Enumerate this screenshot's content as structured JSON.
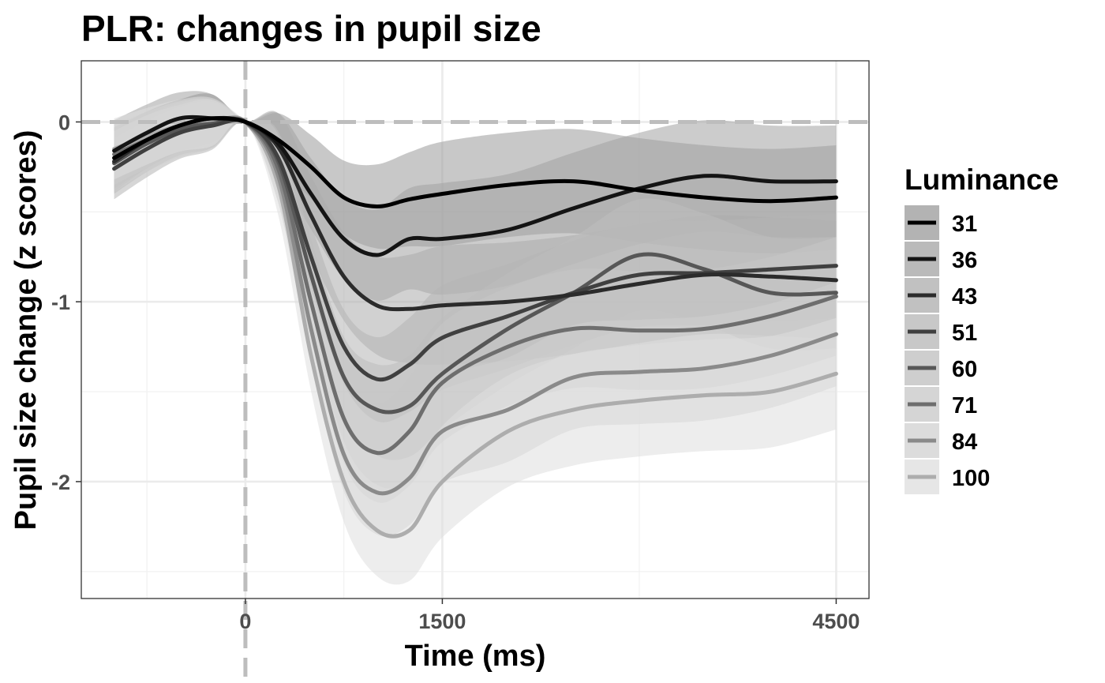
{
  "chart_data": {
    "type": "line",
    "title": "PLR: changes in pupil size",
    "xlabel": "Time (ms)",
    "ylabel": "Pupil size change (z scores)",
    "xlim": [
      -1250,
      4750
    ],
    "ylim": [
      -2.65,
      0.34
    ],
    "x_ticks": [
      0,
      1500,
      4500
    ],
    "x_tick_labels": [
      "0",
      "1500",
      "4500"
    ],
    "y_ticks": [
      0,
      -1,
      -2
    ],
    "y_tick_labels": [
      "0",
      "-1",
      "-2"
    ],
    "grid": true,
    "reference_lines": {
      "x": 0,
      "y": 0,
      "style": "dashed"
    },
    "legend": {
      "title": "Luminance",
      "position": "right"
    },
    "x": [
      -1000,
      -750,
      -500,
      -250,
      0,
      250,
      500,
      750,
      1000,
      1250,
      1500,
      2000,
      2500,
      3000,
      3500,
      4000,
      4500
    ],
    "series": [
      {
        "name": "31",
        "color": "#000000",
        "ribbon": "#9a9a9a",
        "values": [
          -0.2,
          -0.1,
          -0.02,
          0.02,
          0,
          -0.1,
          -0.25,
          -0.42,
          -0.47,
          -0.43,
          -0.4,
          -0.35,
          -0.33,
          -0.38,
          -0.42,
          -0.44,
          -0.42
        ]
      },
      {
        "name": "36",
        "color": "#141414",
        "ribbon": "#a3a3a3",
        "values": [
          -0.16,
          -0.06,
          0.02,
          0.02,
          0,
          -0.12,
          -0.4,
          -0.65,
          -0.74,
          -0.65,
          -0.65,
          -0.6,
          -0.48,
          -0.37,
          -0.3,
          -0.33,
          -0.33
        ]
      },
      {
        "name": "43",
        "color": "#2b2b2b",
        "ribbon": "#acacac",
        "values": [
          -0.22,
          -0.1,
          -0.02,
          0.02,
          0,
          -0.14,
          -0.52,
          -0.86,
          -1.02,
          -1.04,
          -1.02,
          -1.0,
          -0.96,
          -0.9,
          -0.85,
          -0.86,
          -0.88
        ]
      },
      {
        "name": "51",
        "color": "#404040",
        "ribbon": "#b5b5b5",
        "values": [
          -0.26,
          -0.15,
          -0.06,
          -0.02,
          0,
          -0.2,
          -0.75,
          -1.25,
          -1.43,
          -1.35,
          -1.2,
          -1.08,
          -0.95,
          -0.85,
          -0.84,
          -0.82,
          -0.8
        ]
      },
      {
        "name": "60",
        "color": "#575757",
        "ribbon": "#bebebe",
        "values": [
          -0.23,
          -0.12,
          -0.04,
          -0.01,
          0,
          -0.22,
          -0.85,
          -1.42,
          -1.6,
          -1.58,
          -1.4,
          -1.15,
          -0.95,
          -0.74,
          -0.82,
          -0.95,
          -0.95
        ]
      },
      {
        "name": "71",
        "color": "#6e6e6e",
        "ribbon": "#c7c7c7",
        "values": [
          -0.18,
          -0.1,
          -0.03,
          -0.01,
          0,
          -0.26,
          -1.0,
          -1.65,
          -1.84,
          -1.72,
          -1.45,
          -1.25,
          -1.15,
          -1.16,
          -1.15,
          -1.08,
          -0.97
        ]
      },
      {
        "name": "84",
        "color": "#8a8a8a",
        "ribbon": "#d0d0d0",
        "values": [
          -0.22,
          -0.12,
          -0.05,
          -0.01,
          0,
          -0.3,
          -1.15,
          -1.85,
          -2.06,
          -1.98,
          -1.72,
          -1.6,
          -1.42,
          -1.39,
          -1.37,
          -1.3,
          -1.18
        ]
      },
      {
        "name": "100",
        "color": "#adadad",
        "ribbon": "#dedede",
        "values": [
          -0.15,
          -0.08,
          -0.02,
          0.0,
          0,
          -0.35,
          -1.3,
          -2.0,
          -2.27,
          -2.27,
          -2.0,
          -1.72,
          -1.6,
          -1.55,
          -1.52,
          -1.5,
          -1.4
        ]
      }
    ]
  }
}
